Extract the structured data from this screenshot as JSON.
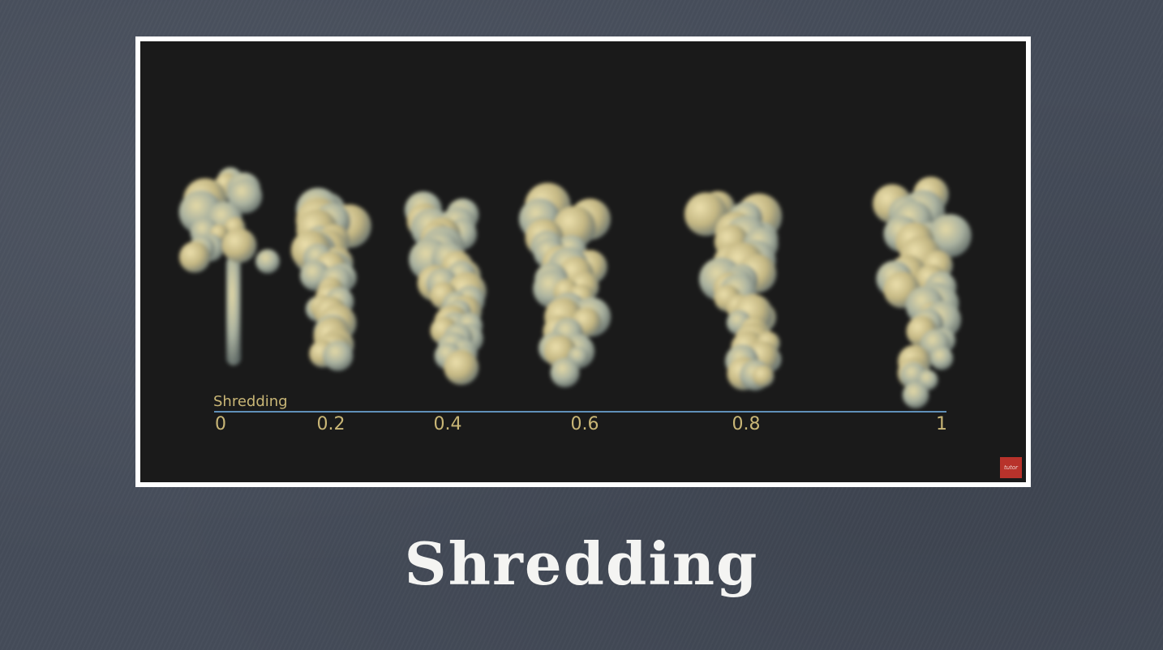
{
  "slide": {
    "title": "Shredding"
  },
  "figure": {
    "scale_title": "Shredding",
    "tick_labels": [
      "0",
      "0.2",
      "0.4",
      "0.6",
      "0.8",
      "1"
    ],
    "badge_text": "tutor",
    "colors": {
      "background": "#454c59",
      "frame": "#ffffff",
      "render_bg": "#1a1a1a",
      "label_text": "#c9b676",
      "axis_line": "#5f8fb8",
      "badge": "#b8322b",
      "smoke_warm": "#d4bd7a",
      "smoke_cool": "#9fb0a8"
    },
    "smoke_plumes": [
      {
        "shredding": 0
      },
      {
        "shredding": 0.2
      },
      {
        "shredding": 0.4
      },
      {
        "shredding": 0.6
      },
      {
        "shredding": 0.8
      },
      {
        "shredding": 1
      }
    ]
  }
}
